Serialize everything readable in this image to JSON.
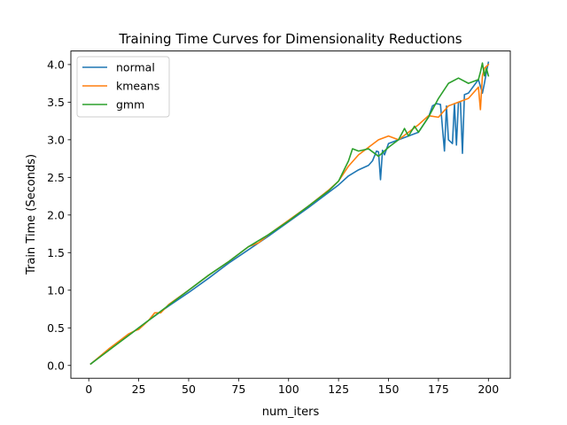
{
  "chart_data": {
    "type": "line",
    "title": "Training Time Curves for Dimensionality Reductions",
    "xlabel": "num_iters",
    "ylabel": "Train Time (Seconds)",
    "xlim": [
      -8.95,
      210.95
    ],
    "ylim": [
      -0.17,
      4.18
    ],
    "xticks": [
      0,
      25,
      50,
      75,
      100,
      125,
      150,
      175,
      200
    ],
    "yticks": [
      0.0,
      0.5,
      1.0,
      1.5,
      2.0,
      2.5,
      3.0,
      3.5,
      4.0
    ],
    "xtick_labels": [
      "0",
      "25",
      "50",
      "75",
      "100",
      "125",
      "150",
      "175",
      "200"
    ],
    "ytick_labels": [
      "0.0",
      "0.5",
      "1.0",
      "1.5",
      "2.0",
      "2.5",
      "3.0",
      "3.5",
      "4.0"
    ],
    "grid": false,
    "legend_position": "top-left",
    "series": [
      {
        "name": "normal",
        "color": "#1f77b4",
        "x": [
          1,
          10,
          20,
          30,
          40,
          50,
          60,
          70,
          80,
          90,
          100,
          110,
          120,
          125,
          130,
          135,
          140,
          142,
          144,
          145,
          146,
          147,
          148,
          150,
          155,
          160,
          165,
          170,
          172,
          174,
          176,
          178,
          179,
          180,
          182,
          183,
          184,
          185,
          186,
          187,
          188,
          190,
          195,
          197,
          198,
          199,
          200
        ],
        "values": [
          0.02,
          0.21,
          0.4,
          0.6,
          0.79,
          0.97,
          1.16,
          1.36,
          1.54,
          1.72,
          1.91,
          2.1,
          2.3,
          2.4,
          2.52,
          2.6,
          2.66,
          2.72,
          2.85,
          2.84,
          2.47,
          2.86,
          2.8,
          2.95,
          3.0,
          3.05,
          3.1,
          3.3,
          3.45,
          3.48,
          3.47,
          2.85,
          3.45,
          3.0,
          2.95,
          3.48,
          2.93,
          3.5,
          3.5,
          2.82,
          3.6,
          3.62,
          3.8,
          3.62,
          3.75,
          3.9,
          4.03
        ]
      },
      {
        "name": "kmeans",
        "color": "#ff7f0e",
        "x": [
          1,
          10,
          20,
          23,
          25,
          30,
          33,
          36,
          40,
          50,
          60,
          70,
          80,
          85,
          90,
          100,
          110,
          120,
          125,
          130,
          135,
          140,
          145,
          150,
          155,
          160,
          165,
          170,
          175,
          180,
          185,
          190,
          195,
          196,
          197,
          198,
          200
        ],
        "values": [
          0.02,
          0.22,
          0.42,
          0.46,
          0.48,
          0.6,
          0.7,
          0.7,
          0.81,
          1.0,
          1.2,
          1.38,
          1.58,
          1.63,
          1.74,
          1.93,
          2.12,
          2.33,
          2.45,
          2.65,
          2.8,
          2.9,
          3.0,
          3.05,
          3.0,
          3.1,
          3.2,
          3.32,
          3.3,
          3.45,
          3.5,
          3.55,
          3.7,
          3.4,
          3.85,
          3.95,
          4.0
        ]
      },
      {
        "name": "gmm",
        "color": "#2ca02c",
        "x": [
          1,
          10,
          20,
          30,
          40,
          50,
          60,
          70,
          80,
          90,
          100,
          110,
          120,
          125,
          130,
          132,
          135,
          140,
          145,
          150,
          155,
          158,
          160,
          163,
          165,
          170,
          175,
          180,
          185,
          190,
          195,
          196,
          197,
          198,
          199,
          200
        ],
        "values": [
          0.02,
          0.2,
          0.4,
          0.6,
          0.8,
          1.0,
          1.2,
          1.38,
          1.58,
          1.74,
          1.92,
          2.12,
          2.32,
          2.45,
          2.72,
          2.88,
          2.85,
          2.88,
          2.78,
          2.9,
          3.0,
          3.15,
          3.05,
          3.18,
          3.1,
          3.3,
          3.55,
          3.75,
          3.82,
          3.75,
          3.8,
          3.9,
          4.02,
          3.85,
          3.95,
          3.85
        ]
      }
    ]
  }
}
